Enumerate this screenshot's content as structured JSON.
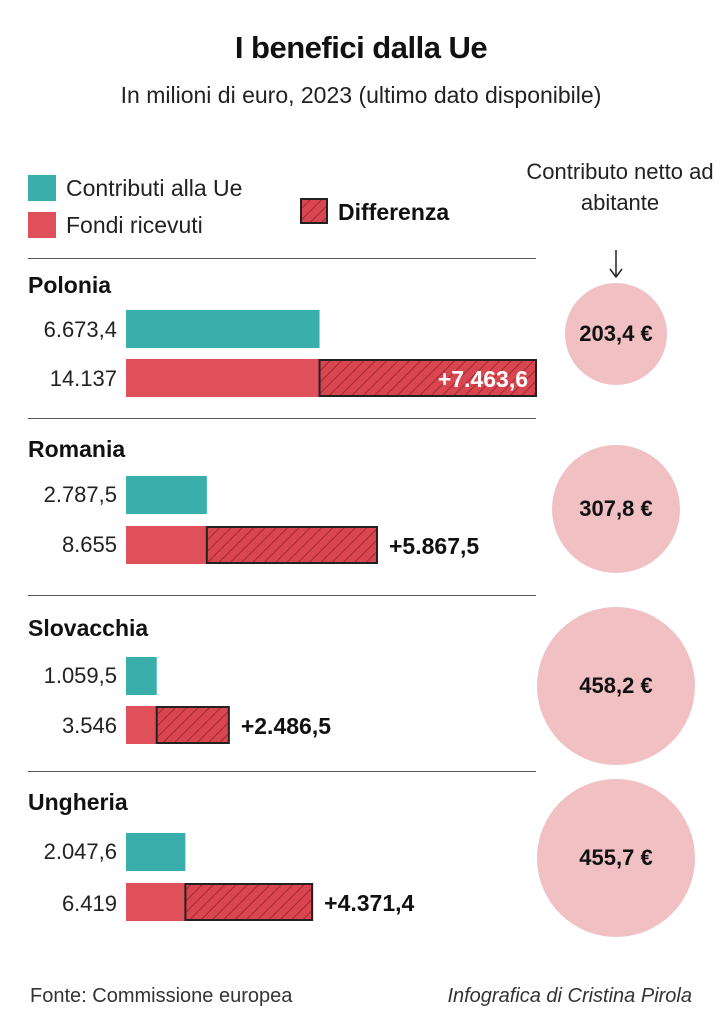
{
  "title": "I benefici dalla Ue",
  "subtitle": "In milioni di euro, 2023 (ultimo dato disponibile)",
  "legend": {
    "contributions": "Contributi alla Ue",
    "funds": "Fondi ricevuti",
    "difference": "Differenza"
  },
  "column_header": "Contributo netto ad abitante",
  "colors": {
    "contributions": "#3aaeaa",
    "funds": "#e0505a",
    "circle": "#f0c0c3"
  },
  "chart_data": {
    "type": "bar",
    "categories": [
      "Polonia",
      "Romania",
      "Slovacchia",
      "Ungheria"
    ],
    "series": [
      {
        "name": "Contributi alla Ue",
        "values": [
          6673.4,
          2787.5,
          1059.5,
          2047.6
        ]
      },
      {
        "name": "Fondi ricevuti",
        "values": [
          14137,
          8655,
          3546,
          6419
        ]
      },
      {
        "name": "Differenza",
        "values": [
          7463.6,
          5867.5,
          2486.5,
          4371.4
        ]
      }
    ],
    "value_labels": {
      "contributions": [
        "6.673,4",
        "2.787,5",
        "1.059,5",
        "2.047,6"
      ],
      "funds": [
        "14.137",
        "8.655",
        "3.546",
        "6.419"
      ],
      "difference": [
        "+7.463,6",
        "+5.867,5",
        "+2.486,5",
        "+4.371,4"
      ]
    },
    "net_per_capita": {
      "values": [
        203.4,
        307.8,
        458.2,
        455.7
      ],
      "labels": [
        "203,4 €",
        "307,8 €",
        "458,2 €",
        "455,7 €"
      ]
    }
  },
  "footer": {
    "source": "Fonte: Commissione europea",
    "credit": "Infografica di Cristina Pirola"
  }
}
